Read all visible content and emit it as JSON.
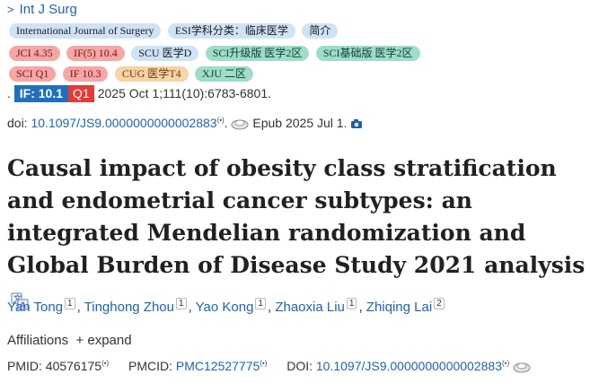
{
  "journal": {
    "chevron": ">",
    "name": "Int J Surg"
  },
  "badges_row1": [
    {
      "text": "International Journal of Surgery",
      "style": "b-blue"
    },
    {
      "text": "ESI学科分类：临床医学",
      "style": "b-blue"
    },
    {
      "text": "简介",
      "style": "b-blue"
    }
  ],
  "badges_row2": [
    {
      "text": "JCI 4.35",
      "style": "b-red"
    },
    {
      "text": "IF(5) 10.4",
      "style": "b-red"
    },
    {
      "text": "SCU 医学D",
      "style": "b-blue"
    },
    {
      "text": "SCI升级版 医学2区",
      "style": "b-green"
    },
    {
      "text": "SCI基础版 医学2区",
      "style": "b-green"
    }
  ],
  "badges_row3": [
    {
      "text": "SCI Q1",
      "style": "b-red"
    },
    {
      "text": "IF 10.3",
      "style": "b-red"
    },
    {
      "text": "CUG 医学T4",
      "style": "b-orange"
    },
    {
      "text": "XJU 二区",
      "style": "b-green"
    }
  ],
  "citation": {
    "dot": ".",
    "if_label": "IF: 10.1",
    "quartile": "Q1",
    "text": "2025 Oct 1;111(10):6783-6801."
  },
  "doi_line": {
    "prefix": "doi: ",
    "doi": "10.1097/JS9.0000000000002883",
    "mark": "(•)",
    "epub": "Epub 2025 Jul 1."
  },
  "title": "Causal impact of obesity class stratification and endometrial cancer subtypes: an integrated Mendelian randomization and Global Burden of Disease Study 2021 analysis",
  "authors": [
    {
      "name": "Yan Tong",
      "aff": "1"
    },
    {
      "name": "Tinghong Zhou",
      "aff": "1"
    },
    {
      "name": "Yao Kong",
      "aff": "1"
    },
    {
      "name": "Zhaoxia Liu",
      "aff": "1"
    },
    {
      "name": "Zhiqing Lai",
      "aff": "2"
    }
  ],
  "author_sep": ",",
  "affiliations": {
    "label": "Affiliations",
    "toggle": "+ expand"
  },
  "ids": {
    "pmid_label": "PMID: ",
    "pmid": "40576175",
    "pmcid_label": "PMCID: ",
    "pmcid": "PMC12527775",
    "doi_label": "DOI: ",
    "doi": "10.1097/JS9.0000000000002883",
    "mark": "(•)"
  }
}
